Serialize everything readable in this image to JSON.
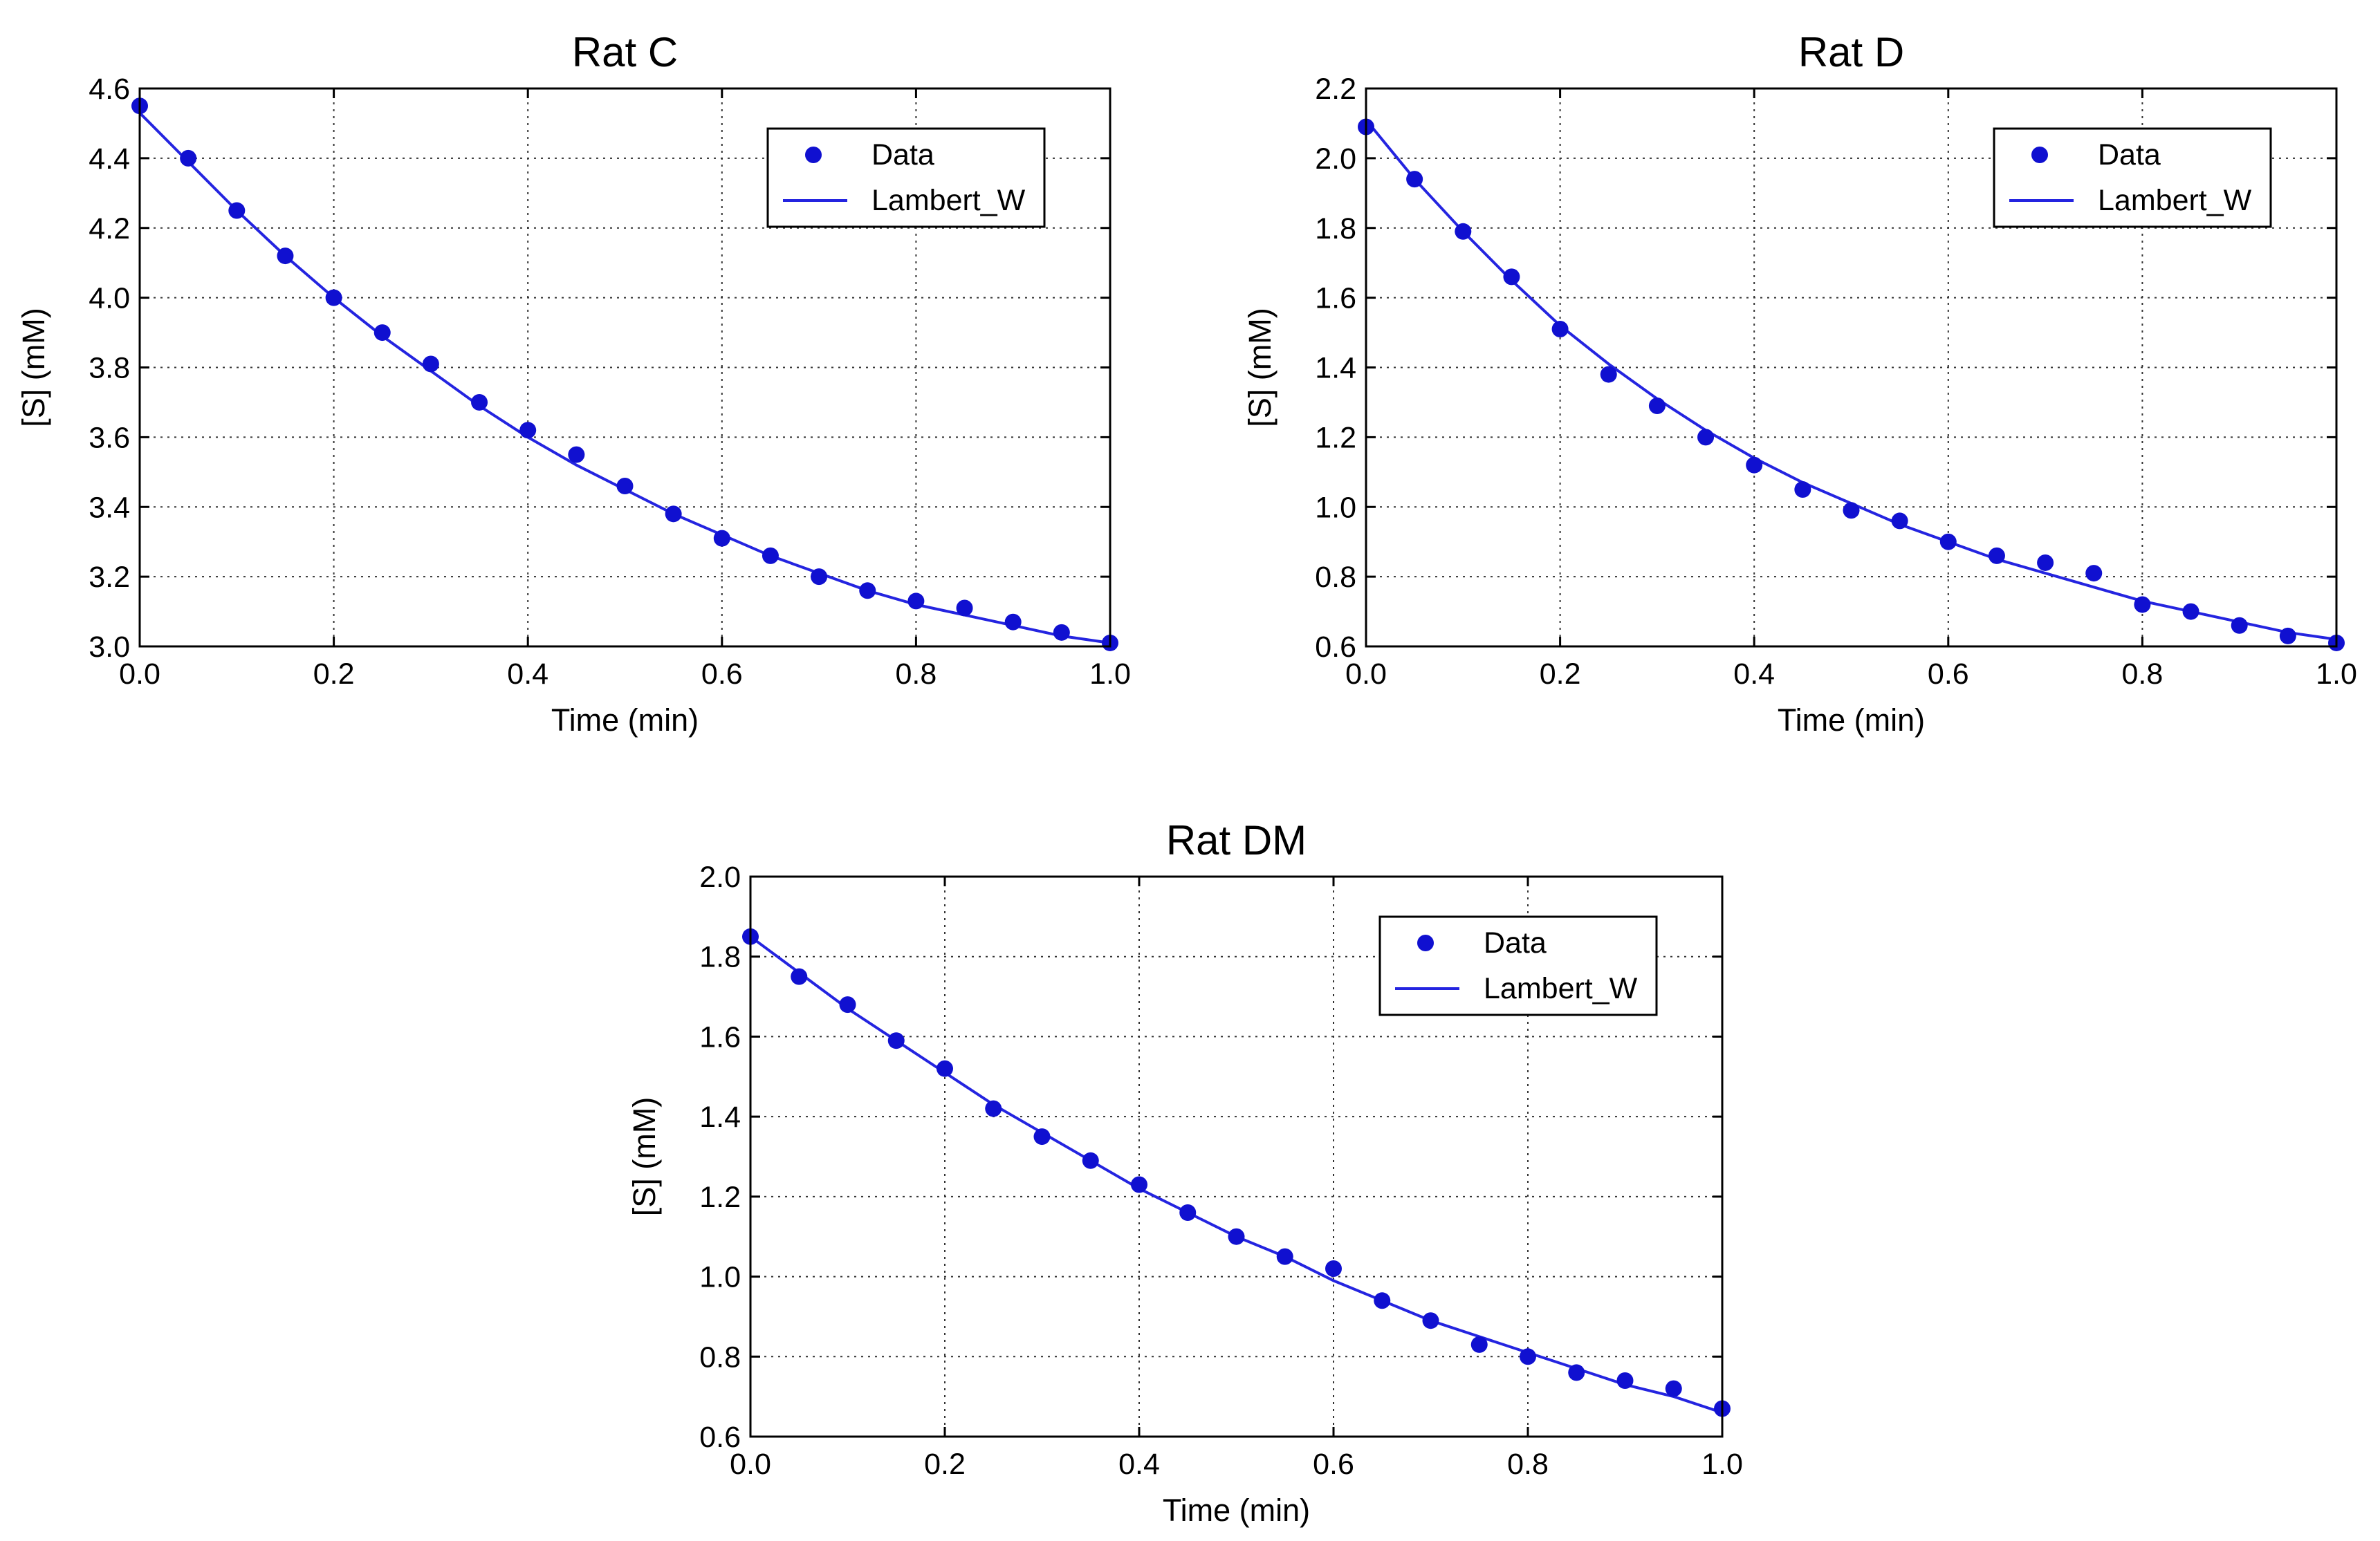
{
  "colors": {
    "series": "#1010d0",
    "line": "#2424e0"
  },
  "chart_data": [
    {
      "type": "scatter",
      "title": "Rat C",
      "xlabel": "Time (min)",
      "ylabel": "[S] (mM)",
      "xlim": [
        0.0,
        1.0
      ],
      "ylim": [
        3.0,
        4.6
      ],
      "xticks": [
        0.0,
        0.2,
        0.4,
        0.6,
        0.8,
        1.0
      ],
      "xtick_labels": [
        "0.0",
        "0.2",
        "0.4",
        "0.6",
        "0.8",
        "1.0"
      ],
      "yticks": [
        3.0,
        3.2,
        3.4,
        3.6,
        3.8,
        4.0,
        4.2,
        4.4,
        4.6
      ],
      "ytick_labels": [
        "3.0",
        "3.2",
        "3.4",
        "3.6",
        "3.8",
        "4.0",
        "4.2",
        "4.4",
        "4.6"
      ],
      "grid": true,
      "legend": {
        "position": "top-right",
        "entries": [
          "Data",
          "Lambert_W"
        ]
      },
      "series": [
        {
          "name": "Data",
          "kind": "markers",
          "x": [
            0.0,
            0.05,
            0.1,
            0.15,
            0.2,
            0.25,
            0.3,
            0.35,
            0.4,
            0.45,
            0.5,
            0.55,
            0.6,
            0.65,
            0.7,
            0.75,
            0.8,
            0.85,
            0.9,
            0.95,
            1.0
          ],
          "y": [
            4.55,
            4.4,
            4.25,
            4.12,
            4.0,
            3.9,
            3.81,
            3.7,
            3.62,
            3.55,
            3.46,
            3.38,
            3.31,
            3.26,
            3.2,
            3.16,
            3.13,
            3.11,
            3.07,
            3.04,
            3.01
          ]
        },
        {
          "name": "Lambert_W",
          "kind": "line",
          "x": [
            0.0,
            0.05,
            0.1,
            0.15,
            0.2,
            0.25,
            0.3,
            0.35,
            0.4,
            0.45,
            0.5,
            0.55,
            0.6,
            0.65,
            0.7,
            0.75,
            0.8,
            0.85,
            0.9,
            0.95,
            1.0
          ],
          "y": [
            4.53,
            4.39,
            4.25,
            4.12,
            4.0,
            3.89,
            3.79,
            3.69,
            3.6,
            3.52,
            3.45,
            3.38,
            3.32,
            3.26,
            3.21,
            3.16,
            3.12,
            3.09,
            3.06,
            3.03,
            3.01
          ]
        }
      ]
    },
    {
      "type": "scatter",
      "title": "Rat D",
      "xlabel": "Time (min)",
      "ylabel": "[S] (mM)",
      "xlim": [
        0.0,
        1.0
      ],
      "ylim": [
        0.6,
        2.2
      ],
      "xticks": [
        0.0,
        0.2,
        0.4,
        0.6,
        0.8,
        1.0
      ],
      "xtick_labels": [
        "0.0",
        "0.2",
        "0.4",
        "0.6",
        "0.8",
        "1.0"
      ],
      "yticks": [
        0.6,
        0.8,
        1.0,
        1.2,
        1.4,
        1.6,
        1.8,
        2.0,
        2.2
      ],
      "ytick_labels": [
        "0.6",
        "0.8",
        "1.0",
        "1.2",
        "1.4",
        "1.6",
        "1.8",
        "2.0",
        "2.2"
      ],
      "grid": true,
      "legend": {
        "position": "top-right",
        "entries": [
          "Data",
          "Lambert_W"
        ]
      },
      "series": [
        {
          "name": "Data",
          "kind": "markers",
          "x": [
            0.0,
            0.05,
            0.1,
            0.15,
            0.2,
            0.25,
            0.3,
            0.35,
            0.4,
            0.45,
            0.5,
            0.55,
            0.6,
            0.65,
            0.7,
            0.75,
            0.8,
            0.85,
            0.9,
            0.95,
            1.0
          ],
          "y": [
            2.09,
            1.94,
            1.79,
            1.66,
            1.51,
            1.38,
            1.29,
            1.2,
            1.12,
            1.05,
            0.99,
            0.96,
            0.9,
            0.86,
            0.84,
            0.81,
            0.72,
            0.7,
            0.66,
            0.63,
            0.61
          ]
        },
        {
          "name": "Lambert_W",
          "kind": "line",
          "x": [
            0.0,
            0.05,
            0.1,
            0.15,
            0.2,
            0.25,
            0.3,
            0.35,
            0.4,
            0.45,
            0.5,
            0.55,
            0.6,
            0.65,
            0.7,
            0.75,
            0.8,
            0.85,
            0.9,
            0.95,
            1.0
          ],
          "y": [
            2.11,
            1.94,
            1.79,
            1.65,
            1.52,
            1.41,
            1.31,
            1.22,
            1.14,
            1.07,
            1.01,
            0.95,
            0.9,
            0.85,
            0.81,
            0.77,
            0.73,
            0.7,
            0.67,
            0.64,
            0.62
          ]
        }
      ]
    },
    {
      "type": "scatter",
      "title": "Rat DM",
      "xlabel": "Time (min)",
      "ylabel": "[S] (mM)",
      "xlim": [
        0.0,
        1.0
      ],
      "ylim": [
        0.6,
        2.0
      ],
      "xticks": [
        0.0,
        0.2,
        0.4,
        0.6,
        0.8,
        1.0
      ],
      "xtick_labels": [
        "0.0",
        "0.2",
        "0.4",
        "0.6",
        "0.8",
        "1.0"
      ],
      "yticks": [
        0.6,
        0.8,
        1.0,
        1.2,
        1.4,
        1.6,
        1.8,
        2.0
      ],
      "ytick_labels": [
        "0.6",
        "0.8",
        "1.0",
        "1.2",
        "1.4",
        "1.6",
        "1.8",
        "2.0"
      ],
      "grid": true,
      "legend": {
        "position": "top-right",
        "entries": [
          "Data",
          "Lambert_W"
        ]
      },
      "series": [
        {
          "name": "Data",
          "kind": "markers",
          "x": [
            0.0,
            0.05,
            0.1,
            0.15,
            0.2,
            0.25,
            0.3,
            0.35,
            0.4,
            0.45,
            0.5,
            0.55,
            0.6,
            0.65,
            0.7,
            0.75,
            0.8,
            0.85,
            0.9,
            0.95,
            1.0
          ],
          "y": [
            1.85,
            1.75,
            1.68,
            1.59,
            1.52,
            1.42,
            1.35,
            1.29,
            1.23,
            1.16,
            1.1,
            1.05,
            1.02,
            0.94,
            0.89,
            0.83,
            0.8,
            0.76,
            0.74,
            0.72,
            0.67
          ]
        },
        {
          "name": "Lambert_W",
          "kind": "line",
          "x": [
            0.0,
            0.05,
            0.1,
            0.15,
            0.2,
            0.25,
            0.3,
            0.35,
            0.4,
            0.45,
            0.5,
            0.55,
            0.6,
            0.65,
            0.7,
            0.75,
            0.8,
            0.85,
            0.9,
            0.95,
            1.0
          ],
          "y": [
            1.85,
            1.76,
            1.67,
            1.59,
            1.51,
            1.43,
            1.36,
            1.29,
            1.22,
            1.16,
            1.1,
            1.05,
            0.99,
            0.94,
            0.89,
            0.85,
            0.81,
            0.77,
            0.73,
            0.7,
            0.66
          ]
        }
      ]
    }
  ]
}
